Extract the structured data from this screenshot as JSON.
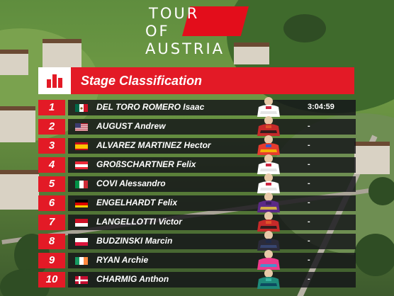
{
  "logo": {
    "line1": "TOUR",
    "line2": "OF",
    "line3": "AUSTRIA"
  },
  "header": {
    "title": "Stage Classification",
    "icon": "bar-chart-icon"
  },
  "colors": {
    "accent": "#e31a26",
    "row_bg": "#1a1a1e",
    "text": "#ffffff"
  },
  "rows": [
    {
      "pos": "1",
      "name": "DEL TORO ROMERO Isaac",
      "country": "mexico",
      "team_colors": [
        "#ffffff",
        "#e0e0e0",
        "#c8102e"
      ],
      "time": "3:04:59"
    },
    {
      "pos": "2",
      "name": "AUGUST Andrew",
      "country": "usa",
      "team_colors": [
        "#c62a2a",
        "#1a1a1a",
        "#e05a2a"
      ],
      "time": "-"
    },
    {
      "pos": "3",
      "name": "ALVAREZ MARTINEZ Hector",
      "country": "spain",
      "team_colors": [
        "#e63b2e",
        "#f5c400",
        "#2a5bd7"
      ],
      "time": "-"
    },
    {
      "pos": "4",
      "name": "GROßSCHARTNER Felix",
      "country": "austria",
      "team_colors": [
        "#ffffff",
        "#e0e0e0",
        "#c8102e"
      ],
      "time": "-"
    },
    {
      "pos": "5",
      "name": "COVI Alessandro",
      "country": "italy",
      "team_colors": [
        "#ffffff",
        "#e0e0e0",
        "#c8102e"
      ],
      "time": "-"
    },
    {
      "pos": "6",
      "name": "ENGELHARDT Felix",
      "country": "germany",
      "team_colors": [
        "#5b2a86",
        "#e7c83a",
        "#3a1f5c"
      ],
      "time": "-"
    },
    {
      "pos": "7",
      "name": "LANGELLOTTI Victor",
      "country": "monaco",
      "team_colors": [
        "#c62a2a",
        "#1a1a1a",
        "#e05a2a"
      ],
      "time": "-"
    },
    {
      "pos": "8",
      "name": "BUDZINSKI Marcin",
      "country": "poland",
      "team_colors": [
        "#2b2b3a",
        "#3a4a7a",
        "#1f2a4a"
      ],
      "time": "-"
    },
    {
      "pos": "9",
      "name": "RYAN Archie",
      "country": "ireland",
      "team_colors": [
        "#ee3a8c",
        "#2aa0d8",
        "#ee3a8c"
      ],
      "time": "-"
    },
    {
      "pos": "10",
      "name": "CHARMIG Anthon",
      "country": "denmark",
      "team_colors": [
        "#1e8a7a",
        "#0b3d5c",
        "#39b7a4"
      ],
      "time": "-"
    }
  ]
}
